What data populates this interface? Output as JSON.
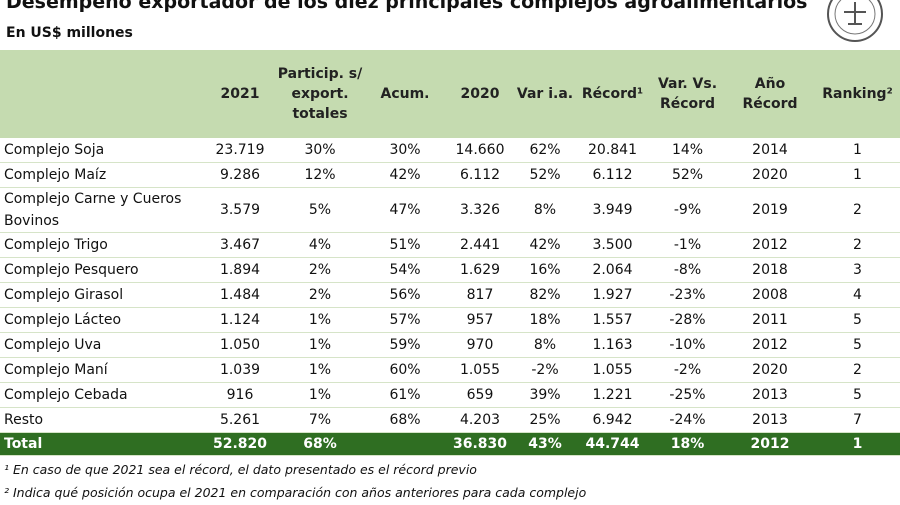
{
  "header": {
    "title": "Desempeño exportador de los diez principales complejos agroalimentarios",
    "subtitle": "En US$ millones"
  },
  "table": {
    "columns": [
      "",
      "2021",
      "Particip. s/ export. totales",
      "Acum.",
      "2020",
      "Var i.a.",
      "Récord¹",
      "Var. Vs. Récord",
      "Año Récord",
      "Ranking²"
    ],
    "rows": [
      [
        "Complejo Soja",
        "23.719",
        "30%",
        "30%",
        "14.660",
        "62%",
        "20.841",
        "14%",
        "2014",
        "1"
      ],
      [
        "Complejo Maíz",
        "9.286",
        "12%",
        "42%",
        "6.112",
        "52%",
        "6.112",
        "52%",
        "2020",
        "1"
      ],
      [
        "Complejo Carne y Cueros Bovinos",
        "3.579",
        "5%",
        "47%",
        "3.326",
        "8%",
        "3.949",
        "-9%",
        "2019",
        "2"
      ],
      [
        "Complejo Trigo",
        "3.467",
        "4%",
        "51%",
        "2.441",
        "42%",
        "3.500",
        "-1%",
        "2012",
        "2"
      ],
      [
        "Complejo Pesquero",
        "1.894",
        "2%",
        "54%",
        "1.629",
        "16%",
        "2.064",
        "-8%",
        "2018",
        "3"
      ],
      [
        "Complejo Girasol",
        "1.484",
        "2%",
        "56%",
        "817",
        "82%",
        "1.927",
        "-23%",
        "2008",
        "4"
      ],
      [
        "Complejo Lácteo",
        "1.124",
        "1%",
        "57%",
        "957",
        "18%",
        "1.557",
        "-28%",
        "2011",
        "5"
      ],
      [
        "Complejo Uva",
        "1.050",
        "1%",
        "59%",
        "970",
        "8%",
        "1.163",
        "-10%",
        "2012",
        "5"
      ],
      [
        "Complejo Maní",
        "1.039",
        "1%",
        "60%",
        "1.055",
        "-2%",
        "1.055",
        "-2%",
        "2020",
        "2"
      ],
      [
        "Complejo Cebada",
        "916",
        "1%",
        "61%",
        "659",
        "39%",
        "1.221",
        "-25%",
        "2013",
        "5"
      ],
      [
        "Resto",
        "5.261",
        "7%",
        "68%",
        "4.203",
        "25%",
        "6.942",
        "-24%",
        "2013",
        "7"
      ]
    ],
    "total": [
      "Total",
      "52.820",
      "68%",
      "",
      "36.830",
      "43%",
      "44.744",
      "18%",
      "2012",
      "1"
    ]
  },
  "footnotes": [
    "¹ En caso de que 2021 sea el récord, el dato presentado es el récord previo",
    "² Indica qué posición ocupa el 2021 en comparación con años anteriores para cada complejo"
  ]
}
